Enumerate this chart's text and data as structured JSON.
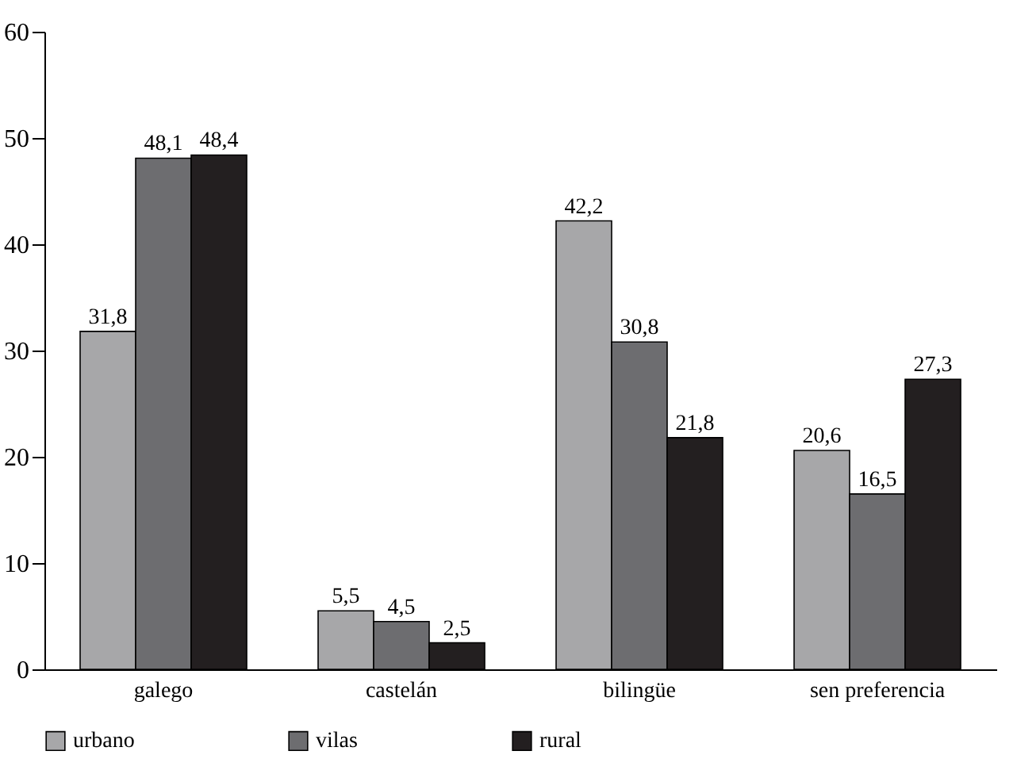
{
  "chart_data": {
    "type": "bar",
    "categories": [
      "galego",
      "castelán",
      "bilingüe",
      "sen preferencia"
    ],
    "series": [
      {
        "name": "urbano",
        "color": "#a7a7a9",
        "values": [
          31.8,
          5.5,
          42.2,
          20.6
        ],
        "value_labels": [
          "31,8",
          "5,5",
          "42,2",
          "20,6"
        ]
      },
      {
        "name": "vilas",
        "color": "#6d6d70",
        "values": [
          48.1,
          4.5,
          30.8,
          16.5
        ],
        "value_labels": [
          "48,1",
          "4,5",
          "30,8",
          "16,5"
        ]
      },
      {
        "name": "rural",
        "color": "#231f20",
        "values": [
          48.4,
          2.5,
          21.8,
          27.3
        ],
        "value_labels": [
          "48,4",
          "2,5",
          "21,8",
          "27,3"
        ]
      }
    ],
    "ylim": [
      0,
      60
    ],
    "yticks": [
      0,
      10,
      20,
      30,
      40,
      50,
      60
    ],
    "grid": false,
    "legend": "bottom"
  }
}
